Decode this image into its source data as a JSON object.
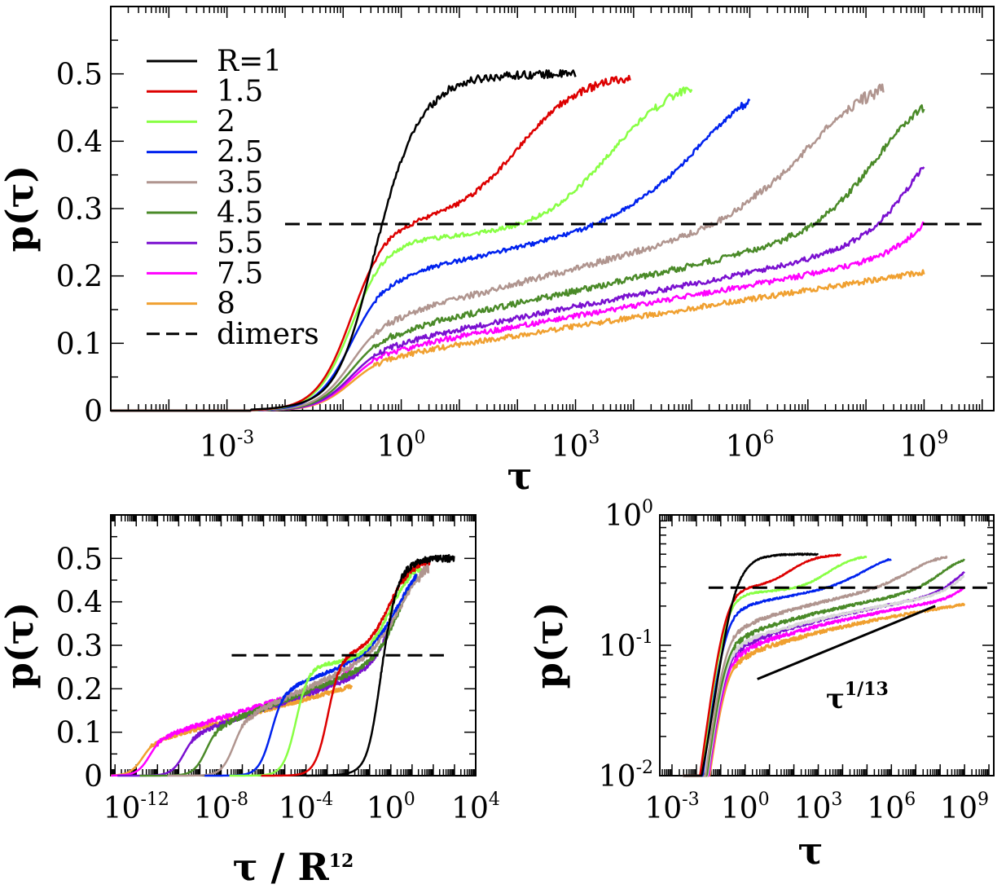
{
  "chart_data": [
    {
      "id": "top",
      "type": "line",
      "xscale": "log",
      "yscale": "linear",
      "xlim_log10": [
        -5,
        10.2
      ],
      "ylim": [
        0,
        0.6
      ],
      "xlabel": "τ",
      "ylabel": "p(τ)",
      "xticks": [
        {
          "v": -3,
          "base": "10",
          "exp": "-3"
        },
        {
          "v": 0,
          "base": "10",
          "exp": "0"
        },
        {
          "v": 3,
          "base": "10",
          "exp": "3"
        },
        {
          "v": 6,
          "base": "10",
          "exp": "6"
        },
        {
          "v": 9,
          "base": "10",
          "exp": "9"
        }
      ],
      "yticks": [
        {
          "v": 0,
          "label": "0"
        },
        {
          "v": 0.1,
          "label": "0.1"
        },
        {
          "v": 0.2,
          "label": "0.2"
        },
        {
          "v": 0.3,
          "label": "0.3"
        },
        {
          "v": 0.4,
          "label": "0.4"
        },
        {
          "v": 0.5,
          "label": "0.5"
        }
      ],
      "reference_line": {
        "name": "dimers",
        "y": 0.277,
        "x_log10": [
          -2,
          10
        ]
      },
      "legend": {
        "position": "top-left",
        "entries": [
          {
            "label": "R=1",
            "color": "#000000",
            "dash": false
          },
          {
            "label": "1.5",
            "color": "#dd0000",
            "dash": false
          },
          {
            "label": "2",
            "color": "#88ff44",
            "dash": false
          },
          {
            "label": "2.5",
            "color": "#0022ee",
            "dash": false
          },
          {
            "label": "3.5",
            "color": "#b0958f",
            "dash": false
          },
          {
            "label": "4.5",
            "color": "#4a8a28",
            "dash": false
          },
          {
            "label": "5.5",
            "color": "#7a10d0",
            "dash": false
          },
          {
            "label": "7.5",
            "color": "#ff00ff",
            "dash": false
          },
          {
            "label": "8",
            "color": "#f0a030",
            "dash": false
          },
          {
            "label": "dimers",
            "color": "#000000",
            "dash": true
          }
        ]
      }
    },
    {
      "id": "bottom-left",
      "type": "line",
      "xscale": "log",
      "yscale": "linear",
      "xlim_log10": [
        -13.2,
        4
      ],
      "ylim": [
        0,
        0.6
      ],
      "xlabel_main": "τ / R",
      "xlabel_exp": "12",
      "ylabel": "p(τ)",
      "xticks": [
        {
          "v": -12,
          "base": "10",
          "exp": "-12"
        },
        {
          "v": -8,
          "base": "10",
          "exp": "-8"
        },
        {
          "v": -4,
          "base": "10",
          "exp": "-4"
        },
        {
          "v": 0,
          "base": "10",
          "exp": "0"
        },
        {
          "v": 4,
          "base": "10",
          "exp": "4"
        }
      ],
      "yticks": [
        {
          "v": 0,
          "label": "0"
        },
        {
          "v": 0.1,
          "label": "0.1"
        },
        {
          "v": 0.2,
          "label": "0.2"
        },
        {
          "v": 0.3,
          "label": "0.3"
        },
        {
          "v": 0.4,
          "label": "0.4"
        },
        {
          "v": 0.5,
          "label": "0.5"
        }
      ],
      "reference_line": {
        "y": 0.277,
        "x_log10": [
          -7.5,
          2.5
        ]
      }
    },
    {
      "id": "bottom-right",
      "type": "line",
      "xscale": "log",
      "yscale": "log",
      "xlim_log10": [
        -3.5,
        10.2
      ],
      "ylim_log10": [
        -2,
        0
      ],
      "xlabel": "τ",
      "ylabel": "p(τ)",
      "xticks": [
        {
          "v": -3,
          "base": "10",
          "exp": "-3"
        },
        {
          "v": 0,
          "base": "10",
          "exp": "0"
        },
        {
          "v": 3,
          "base": "10",
          "exp": "3"
        },
        {
          "v": 6,
          "base": "10",
          "exp": "6"
        },
        {
          "v": 9,
          "base": "10",
          "exp": "9"
        }
      ],
      "yticks": [
        {
          "v": -2,
          "base": "10",
          "exp": "-2"
        },
        {
          "v": -1,
          "base": "10",
          "exp": "-1"
        },
        {
          "v": 0,
          "base": "10",
          "exp": "0"
        }
      ],
      "reference_line": {
        "y": 0.277,
        "x_log10": [
          -1.5,
          10
        ]
      },
      "power_law": {
        "label_base": "τ",
        "label_exp": "1/13",
        "slope": 0.0769,
        "x_log10": [
          0.5,
          7.8
        ],
        "y_at_start": 0.055
      }
    }
  ],
  "series_params": [
    {
      "R": "1",
      "color": "#000000",
      "plateau": false,
      "step1": -0.55,
      "step1_w": 0.45,
      "end": 3.0,
      "noise": 0.004
    },
    {
      "R": "1.5",
      "color": "#dd0000",
      "plateau": true,
      "slope": 0.0,
      "step2": 2.0,
      "step2_w": 0.55,
      "end": 3.95,
      "noise": 0.004
    },
    {
      "R": "2",
      "color": "#88ff44",
      "plateau": true,
      "slope": 0.003,
      "step2": 3.6,
      "step2_w": 0.6,
      "end": 5.0,
      "noise": 0.004
    },
    {
      "R": "2.5",
      "color": "#0022ee",
      "plateau": true,
      "slope": 0.018,
      "step2": 5.1,
      "step2_w": 0.6,
      "end": 6.0,
      "noise": 0.004
    },
    {
      "R": "3.5",
      "color": "#b0958f",
      "plateau": true,
      "slope": 0.022,
      "step2": 7.0,
      "step2_w": 0.6,
      "end": 8.3,
      "noise": 0.006
    },
    {
      "R": "4.5",
      "color": "#4a8a28",
      "plateau": true,
      "slope": 0.0185,
      "step2": 8.3,
      "step2_w": 0.55,
      "end": 9.0,
      "noise": 0.006
    },
    {
      "R": "5.5",
      "color": "#7a10d0",
      "plateau": true,
      "slope": 0.0168,
      "step2": 9.1,
      "step2_w": 0.5,
      "end": 9.0,
      "noise": 0.005
    },
    {
      "R": "7.5",
      "color": "#ff00ff",
      "plateau": true,
      "slope": 0.0152,
      "step2": 9.7,
      "step2_w": 0.45,
      "end": 9.0,
      "noise": 0.005
    },
    {
      "R": "8",
      "color": "#f0a030",
      "plateau": true,
      "slope": 0.0134,
      "step2": 99,
      "step2_w": 0.5,
      "end": 9.0,
      "noise": 0.005
    }
  ],
  "extra_series_bottom_right": {
    "R": "6.5",
    "color": "#d8d8d8",
    "slope": 0.016,
    "step2": 9.3,
    "step2_w": 0.5,
    "end": 9.0,
    "noise": 0.005
  }
}
